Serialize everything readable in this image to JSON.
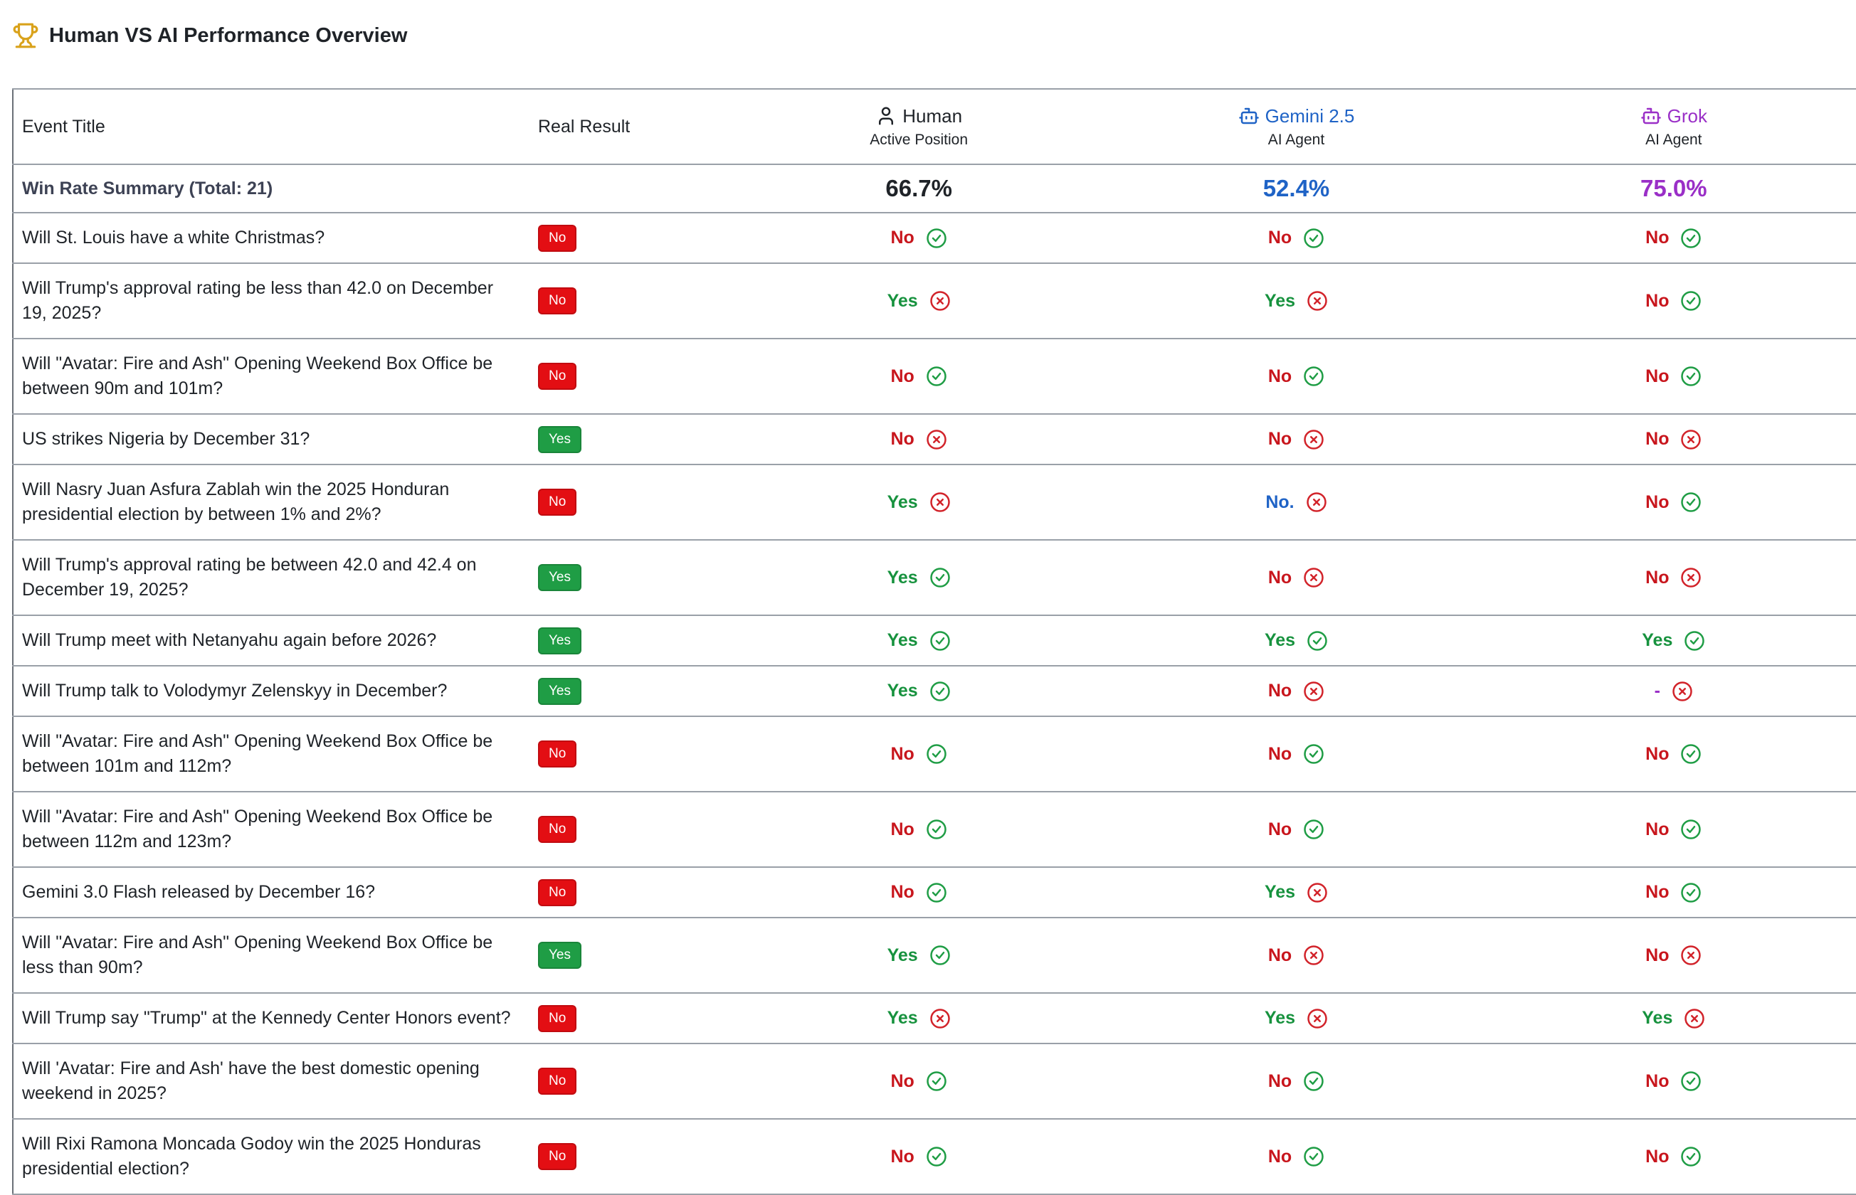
{
  "header": {
    "title": "Human VS AI Performance Overview"
  },
  "answer_colors": {
    "Yes": "#17923e",
    "No": "#c8161d"
  },
  "badge_colors": {
    "Yes": "#1f9d45",
    "No": "#e30e13"
  },
  "table": {
    "headers": {
      "event": "Event Title",
      "result": "Real Result"
    },
    "columns": [
      {
        "name": "Human",
        "subtitle": "Active Position",
        "color": "#1f2328"
      },
      {
        "name": "Gemini 2.5",
        "subtitle": "AI Agent",
        "color": "#1f63c6"
      },
      {
        "name": "Grok",
        "subtitle": "AI Agent",
        "color": "#9a2fc7"
      }
    ],
    "summary": {
      "label": "Win Rate Summary (Total: 21)",
      "values": [
        "66.7%",
        "52.4%",
        "75.0%"
      ]
    },
    "rows": [
      {
        "title": "Will St. Louis have a white Christmas?",
        "result": "No",
        "predictions": [
          {
            "text": "No",
            "correct": true
          },
          {
            "text": "No",
            "correct": true
          },
          {
            "text": "No",
            "correct": true
          }
        ]
      },
      {
        "title": "Will Trump's approval rating be less than 42.0 on December 19, 2025?",
        "result": "No",
        "predictions": [
          {
            "text": "Yes",
            "correct": false
          },
          {
            "text": "Yes",
            "correct": false
          },
          {
            "text": "No",
            "correct": true
          }
        ]
      },
      {
        "title": "Will \"Avatar: Fire and Ash\" Opening Weekend Box Office be between 90m and 101m?",
        "result": "No",
        "predictions": [
          {
            "text": "No",
            "correct": true
          },
          {
            "text": "No",
            "correct": true
          },
          {
            "text": "No",
            "correct": true
          }
        ]
      },
      {
        "title": "US strikes Nigeria by December 31?",
        "result": "Yes",
        "predictions": [
          {
            "text": "No",
            "correct": false
          },
          {
            "text": "No",
            "correct": false
          },
          {
            "text": "No",
            "correct": false
          }
        ]
      },
      {
        "title": "Will Nasry Juan Asfura Zablah win the 2025 Honduran presidential election by between 1% and 2%?",
        "result": "No",
        "predictions": [
          {
            "text": "Yes",
            "correct": false
          },
          {
            "text": "No.",
            "correct": false
          },
          {
            "text": "No",
            "correct": true
          }
        ]
      },
      {
        "title": "Will Trump's approval rating be between 42.0 and 42.4 on December 19, 2025?",
        "result": "Yes",
        "predictions": [
          {
            "text": "Yes",
            "correct": true
          },
          {
            "text": "No",
            "correct": false
          },
          {
            "text": "No",
            "correct": false
          }
        ]
      },
      {
        "title": "Will Trump meet with Netanyahu again before 2026?",
        "result": "Yes",
        "predictions": [
          {
            "text": "Yes",
            "correct": true
          },
          {
            "text": "Yes",
            "correct": true
          },
          {
            "text": "Yes",
            "correct": true
          }
        ]
      },
      {
        "title": "Will Trump talk to Volodymyr Zelenskyy in December?",
        "result": "Yes",
        "predictions": [
          {
            "text": "Yes",
            "correct": true
          },
          {
            "text": "No",
            "correct": false
          },
          {
            "text": "-",
            "correct": false
          }
        ]
      },
      {
        "title": "Will \"Avatar: Fire and Ash\" Opening Weekend Box Office be between 101m and 112m?",
        "result": "No",
        "predictions": [
          {
            "text": "No",
            "correct": true
          },
          {
            "text": "No",
            "correct": true
          },
          {
            "text": "No",
            "correct": true
          }
        ]
      },
      {
        "title": "Will \"Avatar: Fire and Ash\" Opening Weekend Box Office be between 112m and 123m?",
        "result": "No",
        "predictions": [
          {
            "text": "No",
            "correct": true
          },
          {
            "text": "No",
            "correct": true
          },
          {
            "text": "No",
            "correct": true
          }
        ]
      },
      {
        "title": "Gemini 3.0 Flash released by December 16?",
        "result": "No",
        "predictions": [
          {
            "text": "No",
            "correct": true
          },
          {
            "text": "Yes",
            "correct": false
          },
          {
            "text": "No",
            "correct": true
          }
        ]
      },
      {
        "title": "Will \"Avatar: Fire and Ash\" Opening Weekend Box Office be less than 90m?",
        "result": "Yes",
        "predictions": [
          {
            "text": "Yes",
            "correct": true
          },
          {
            "text": "No",
            "correct": false
          },
          {
            "text": "No",
            "correct": false
          }
        ]
      },
      {
        "title": "Will Trump say \"Trump\" at the Kennedy Center Honors event?",
        "result": "No",
        "predictions": [
          {
            "text": "Yes",
            "correct": false
          },
          {
            "text": "Yes",
            "correct": false
          },
          {
            "text": "Yes",
            "correct": false
          }
        ]
      },
      {
        "title": "Will 'Avatar: Fire and Ash' have the best domestic opening weekend in 2025?",
        "result": "No",
        "predictions": [
          {
            "text": "No",
            "correct": true
          },
          {
            "text": "No",
            "correct": true
          },
          {
            "text": "No",
            "correct": true
          }
        ]
      },
      {
        "title": "Will Rixi Ramona Moncada Godoy win the 2025 Honduras presidential election?",
        "result": "No",
        "predictions": [
          {
            "text": "No",
            "correct": true
          },
          {
            "text": "No",
            "correct": true
          },
          {
            "text": "No",
            "correct": true
          }
        ]
      }
    ]
  }
}
